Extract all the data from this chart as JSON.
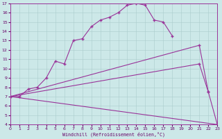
{
  "background_color": "#cce8e8",
  "grid_color": "#aacccc",
  "line_color": "#993399",
  "xlabel": "Windchill (Refroidissement éolien,°C)",
  "xlim": [
    0,
    23
  ],
  "ylim": [
    4,
    17
  ],
  "xticks": [
    0,
    1,
    2,
    3,
    4,
    5,
    6,
    7,
    8,
    9,
    10,
    11,
    12,
    13,
    14,
    15,
    16,
    17,
    18,
    19,
    20,
    21,
    22,
    23
  ],
  "yticks": [
    4,
    5,
    6,
    7,
    8,
    9,
    10,
    11,
    12,
    13,
    14,
    15,
    16,
    17
  ],
  "curve1_x": [
    0,
    1,
    2,
    3,
    4,
    5,
    6,
    7,
    8,
    9,
    10,
    11,
    12,
    13,
    14,
    15,
    16,
    17,
    18
  ],
  "curve1_y": [
    7.0,
    7.0,
    7.8,
    8.0,
    9.0,
    10.8,
    10.5,
    13.0,
    13.2,
    14.5,
    15.2,
    15.5,
    16.0,
    16.8,
    17.0,
    16.8,
    15.2,
    15.0,
    13.5
  ],
  "curve2_x": [
    0,
    21,
    22,
    23
  ],
  "curve2_y": [
    7.0,
    12.5,
    7.5,
    4.0
  ],
  "curve3_x": [
    0,
    21,
    22
  ],
  "curve3_y": [
    7.0,
    10.5,
    7.5
  ],
  "curve4_x": [
    0,
    23
  ],
  "curve4_y": [
    7.0,
    4.0
  ]
}
